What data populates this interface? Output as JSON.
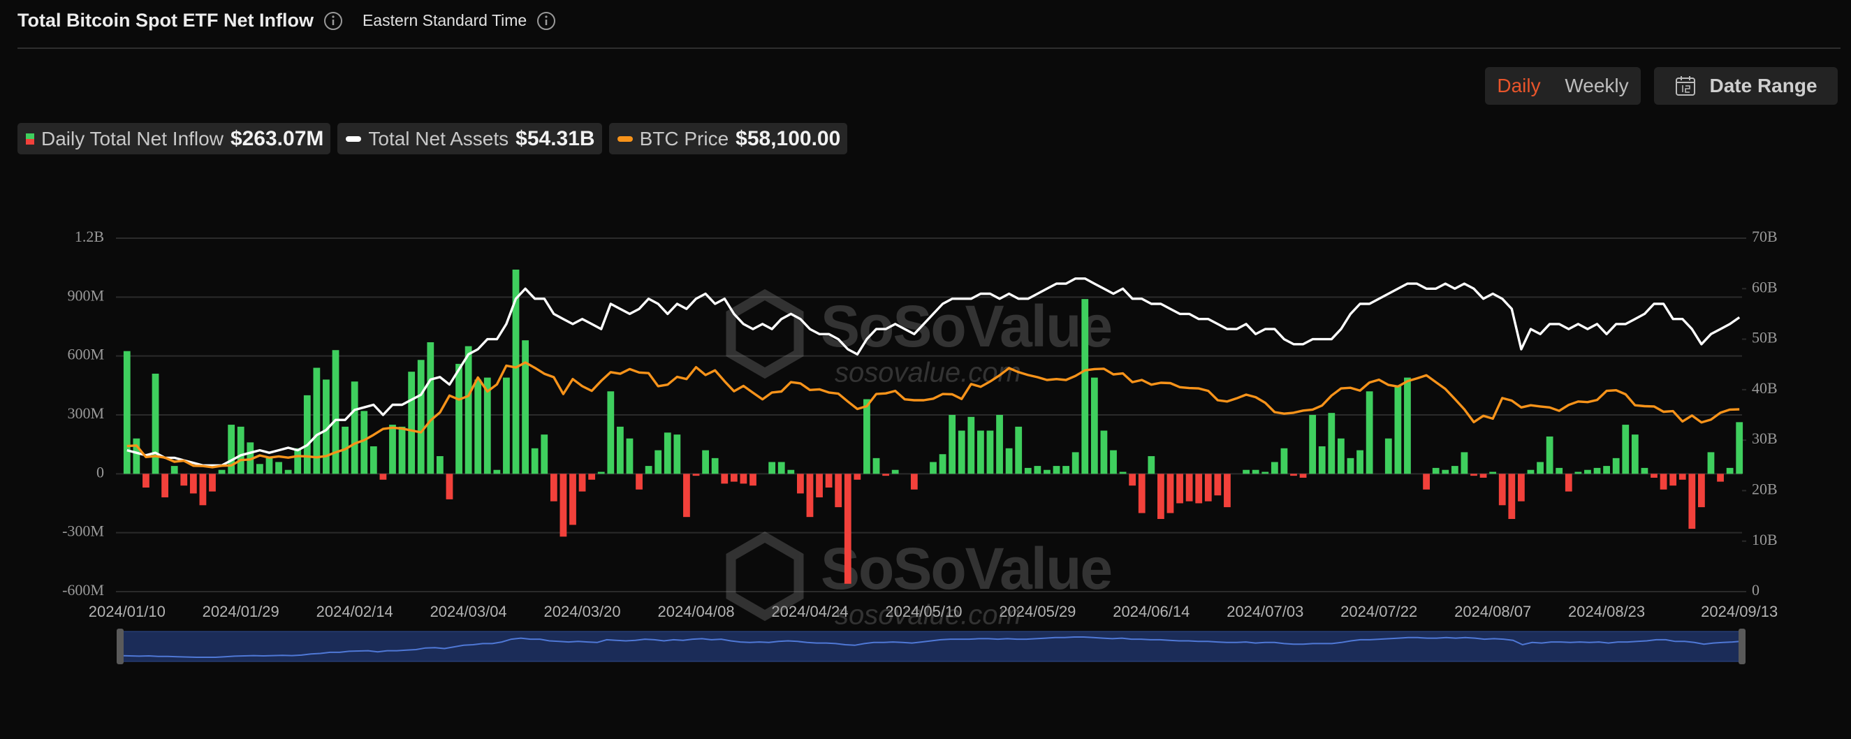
{
  "header": {
    "title": "Total Bitcoin Spot ETF Net Inflow",
    "timezone": "Eastern Standard Time"
  },
  "controls": {
    "intervals": [
      "Daily",
      "Weekly"
    ],
    "active_interval": "Daily",
    "date_range": "Date Range"
  },
  "watermark": {
    "brand": "SoSoValue",
    "site": "sosovalue.com"
  },
  "chart_data": {
    "type": "bar",
    "categories": [
      "2024/01/10",
      null,
      null,
      null,
      null,
      null,
      null,
      null,
      null,
      null,
      null,
      null,
      "2024/01/29",
      null,
      null,
      null,
      null,
      null,
      null,
      null,
      null,
      null,
      null,
      null,
      "2024/02/14",
      null,
      null,
      null,
      null,
      null,
      null,
      null,
      null,
      null,
      null,
      null,
      "2024/03/04",
      null,
      null,
      null,
      null,
      null,
      null,
      null,
      null,
      null,
      null,
      null,
      "2024/03/20",
      null,
      null,
      null,
      null,
      null,
      null,
      null,
      null,
      null,
      null,
      null,
      "2024/04/08",
      null,
      null,
      null,
      null,
      null,
      null,
      null,
      null,
      null,
      null,
      null,
      "2024/04/24",
      null,
      null,
      null,
      null,
      null,
      null,
      null,
      null,
      null,
      null,
      null,
      "2024/05/10",
      null,
      null,
      null,
      null,
      null,
      null,
      null,
      null,
      null,
      null,
      null,
      "2024/05/29",
      null,
      null,
      null,
      null,
      null,
      null,
      null,
      null,
      null,
      null,
      null,
      "2024/06/14",
      null,
      null,
      null,
      null,
      null,
      null,
      null,
      null,
      null,
      null,
      null,
      "2024/07/03",
      null,
      null,
      null,
      null,
      null,
      null,
      null,
      null,
      null,
      null,
      null,
      "2024/07/22",
      null,
      null,
      null,
      null,
      null,
      null,
      null,
      null,
      null,
      null,
      null,
      "2024/08/07",
      null,
      null,
      null,
      null,
      null,
      null,
      null,
      null,
      null,
      null,
      null,
      "2024/08/23",
      null,
      null,
      null,
      null,
      null,
      null,
      null,
      null,
      null,
      null,
      null,
      null,
      null,
      "2024/09/13"
    ],
    "series": [
      {
        "name": "Daily Total Net Inflow",
        "type": "bar",
        "colors": {
          "positive": "#3fcf5e",
          "negative": "#f2413b"
        },
        "latest_label": "$263.07M",
        "values": [
          625,
          180,
          -70,
          510,
          -120,
          40,
          -60,
          -100,
          -160,
          -90,
          20,
          250,
          240,
          160,
          50,
          80,
          60,
          20,
          130,
          400,
          540,
          480,
          630,
          240,
          470,
          320,
          140,
          -30,
          250,
          240,
          520,
          580,
          670,
          90,
          -130,
          560,
          650,
          480,
          490,
          20,
          490,
          1040,
          680,
          130,
          200,
          -140,
          -320,
          -260,
          -90,
          -30,
          10,
          420,
          240,
          180,
          -80,
          40,
          120,
          210,
          200,
          -220,
          -10,
          120,
          80,
          -50,
          -40,
          -50,
          -60,
          0,
          60,
          60,
          20,
          -100,
          -220,
          -120,
          -70,
          -170,
          -560,
          -30,
          380,
          80,
          -10,
          20,
          0,
          -80,
          0,
          60,
          100,
          300,
          220,
          290,
          220,
          220,
          300,
          130,
          240,
          30,
          40,
          20,
          40,
          40,
          110,
          890,
          490,
          220,
          120,
          10,
          -60,
          -200,
          90,
          -230,
          -200,
          -150,
          -140,
          -150,
          -140,
          -110,
          -170,
          0,
          20,
          20,
          10,
          60,
          130,
          -10,
          -20,
          300,
          140,
          310,
          180,
          80,
          120,
          420,
          0,
          180,
          450,
          490,
          0,
          -80,
          30,
          20,
          40,
          110,
          -10,
          -20,
          10,
          -160,
          -230,
          -140,
          20,
          60,
          190,
          30,
          -90,
          10,
          20,
          30,
          40,
          80,
          250,
          200,
          30,
          -20,
          -80,
          -60,
          -30,
          -280,
          -170,
          110,
          -40,
          30,
          263.07
        ]
      },
      {
        "name": "Total Net Assets",
        "type": "line",
        "axis": "y2",
        "color": "#ffffff",
        "latest_label": "$54.31B",
        "values": [
          28,
          27.5,
          27,
          27.5,
          26.5,
          26.5,
          26,
          25.5,
          25,
          25,
          25,
          26,
          27,
          27.5,
          28,
          27.5,
          28,
          28.5,
          28,
          29,
          31,
          32,
          34,
          34,
          36,
          36.5,
          37,
          35,
          37,
          37,
          38,
          39,
          42,
          42.5,
          41,
          44,
          47,
          48,
          50,
          50,
          53,
          58,
          60,
          58,
          58,
          55,
          54,
          53,
          54,
          53,
          52,
          57,
          56,
          55,
          56,
          58,
          57,
          55,
          57,
          56,
          58,
          59,
          57,
          58,
          55,
          53,
          52,
          53,
          52,
          54,
          55,
          54,
          52,
          51,
          51,
          50,
          48,
          47,
          50,
          52,
          52,
          53,
          52,
          51,
          53,
          55,
          57,
          58,
          58,
          58,
          59,
          59,
          58,
          59,
          58,
          58,
          59,
          60,
          61,
          61,
          62,
          62,
          61,
          60,
          59,
          60,
          58,
          58,
          57,
          57,
          56,
          55,
          55,
          54,
          54,
          53,
          52,
          52,
          53,
          51,
          52,
          52,
          50,
          49,
          49,
          50,
          50,
          50,
          52,
          55,
          57,
          57,
          58,
          59,
          60,
          61,
          61,
          60,
          60,
          61,
          60,
          61,
          60,
          58,
          59,
          58,
          56,
          48,
          52,
          51,
          53,
          53,
          52,
          53,
          52,
          53,
          51,
          53,
          53,
          54,
          55,
          57,
          57,
          54,
          54,
          52,
          49,
          51,
          52,
          53,
          54.31
        ]
      },
      {
        "name": "BTC Price",
        "type": "line",
        "color": "#f7931a",
        "latest_label": "$58,100.00",
        "values": [
          46300,
          46500,
          42800,
          43100,
          42600,
          41300,
          41600,
          40000,
          39900,
          39500,
          40000,
          40100,
          41800,
          42000,
          43300,
          42600,
          43000,
          42600,
          43100,
          43000,
          42700,
          43100,
          44300,
          45300,
          47100,
          48200,
          49900,
          51800,
          52200,
          51900,
          51300,
          50700,
          54500,
          57100,
          62500,
          61200,
          62400,
          68300,
          63800,
          66100,
          72100,
          71500,
          73100,
          71400,
          69500,
          68400,
          63000,
          67800,
          65500,
          64000,
          67200,
          70000,
          69500,
          71000,
          69900,
          69700,
          65500,
          66000,
          68500,
          67800,
          71600,
          69100,
          70600,
          67100,
          63900,
          65600,
          63400,
          61300,
          63500,
          63800,
          66800,
          66400,
          64300,
          64500,
          63500,
          63100,
          60600,
          58200,
          59100,
          63000,
          63200,
          64000,
          61300,
          61000,
          61000,
          61500,
          63000,
          62900,
          61400,
          66200,
          65300,
          67000,
          69000,
          71300,
          70000,
          69100,
          68400,
          67500,
          67800,
          67500,
          68800,
          70600,
          71000,
          71100,
          69300,
          69600,
          66800,
          67500,
          66000,
          66600,
          66500,
          65200,
          64900,
          64800,
          64000,
          61000,
          60600,
          61600,
          62800,
          62000,
          60200,
          57200,
          56700,
          57000,
          57700,
          58000,
          59300,
          62500,
          64800,
          65000,
          64100,
          66700,
          67600,
          65900,
          65400,
          67100,
          68000,
          69000,
          66800,
          64600,
          61400,
          58100,
          54000,
          56000,
          55100,
          61700,
          60900,
          58700,
          59400,
          59000,
          58700,
          57600,
          59500,
          60600,
          60400,
          61100,
          64000,
          64200,
          62900,
          59400,
          59100,
          59000,
          57300,
          57500,
          54200,
          56100,
          53900,
          54800,
          57000,
          58000,
          58100
        ]
      }
    ],
    "ylim": [
      -600,
      1200
    ],
    "yticks": [
      {
        "value": 1200,
        "label": "1.2B"
      },
      {
        "value": 900,
        "label": "900M"
      },
      {
        "value": 600,
        "label": "600M"
      },
      {
        "value": 300,
        "label": "300M"
      },
      0,
      {
        "value": -300,
        "label": "-300M"
      },
      {
        "value": -600,
        "label": "-600M"
      }
    ],
    "y2lim": [
      0,
      70
    ],
    "y2ticks": [
      {
        "value": 70,
        "label": "70B"
      },
      {
        "value": 60,
        "label": "60B"
      },
      {
        "value": 50,
        "label": "50B"
      },
      {
        "value": 40,
        "label": "40B"
      },
      {
        "value": 30,
        "label": "30B"
      },
      {
        "value": 20,
        "label": "20B"
      },
      {
        "value": 10,
        "label": "10B"
      },
      0
    ],
    "grid": true
  }
}
